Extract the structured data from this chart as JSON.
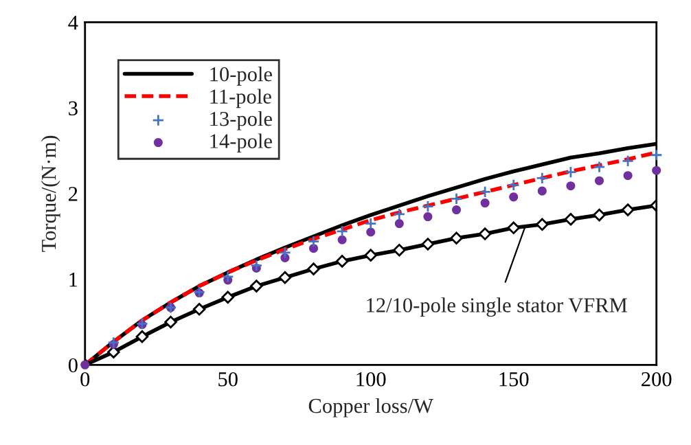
{
  "chart_data": {
    "type": "line",
    "xlabel": "Copper loss/W",
    "ylabel": "Torque/(N·m)",
    "x": [
      0,
      10,
      20,
      30,
      40,
      50,
      60,
      70,
      80,
      90,
      100,
      110,
      120,
      130,
      140,
      150,
      160,
      170,
      180,
      190,
      200
    ],
    "xlim": [
      0,
      200
    ],
    "ylim": [
      0,
      4
    ],
    "xticks": [
      0,
      50,
      100,
      150,
      200
    ],
    "yticks": [
      0,
      1,
      2,
      3,
      4
    ],
    "grid": false,
    "legend": "top left",
    "series": [
      {
        "name": "10-pole",
        "color": "#000000",
        "line_style": "solid",
        "marker": "none",
        "values": [
          0,
          0.27,
          0.52,
          0.73,
          0.92,
          1.08,
          1.23,
          1.37,
          1.5,
          1.63,
          1.75,
          1.86,
          1.97,
          2.07,
          2.17,
          2.26,
          2.34,
          2.42,
          2.47,
          2.53,
          2.58
        ]
      },
      {
        "name": "11-pole",
        "color": "#ff0000",
        "line_style": "dashed",
        "marker": "none",
        "values": [
          0,
          0.27,
          0.52,
          0.73,
          0.92,
          1.08,
          1.22,
          1.35,
          1.47,
          1.58,
          1.69,
          1.78,
          1.86,
          1.94,
          2.02,
          2.1,
          2.18,
          2.26,
          2.33,
          2.4,
          2.48
        ]
      },
      {
        "name": "13-pole",
        "type": "scatter",
        "color": "#4472c4",
        "marker": "cross",
        "values": [
          null,
          0.26,
          0.48,
          0.67,
          0.85,
          1.03,
          1.16,
          1.31,
          1.44,
          1.56,
          1.65,
          1.76,
          1.85,
          1.94,
          2.02,
          2.1,
          2.18,
          2.25,
          2.31,
          2.38,
          2.45
        ]
      },
      {
        "name": "14-pole",
        "type": "scatter",
        "color": "#7030a0",
        "marker": "circle",
        "values": [
          0,
          0.24,
          0.47,
          0.67,
          0.84,
          0.99,
          1.13,
          1.25,
          1.36,
          1.46,
          1.55,
          1.65,
          1.73,
          1.81,
          1.89,
          1.96,
          2.03,
          2.09,
          2.15,
          2.21,
          2.27
        ]
      },
      {
        "color": "#000000",
        "line_style": "solid",
        "marker": "diamond",
        "values": [
          0,
          0.15,
          0.33,
          0.5,
          0.65,
          0.79,
          0.92,
          1.02,
          1.12,
          1.21,
          1.28,
          1.34,
          1.41,
          1.48,
          1.53,
          1.6,
          1.64,
          1.7,
          1.75,
          1.81,
          1.86
        ]
      }
    ],
    "annotations": [
      {
        "text": "12/10-pole single stator VFRM",
        "x": 154,
        "y": 1.61
      }
    ]
  }
}
